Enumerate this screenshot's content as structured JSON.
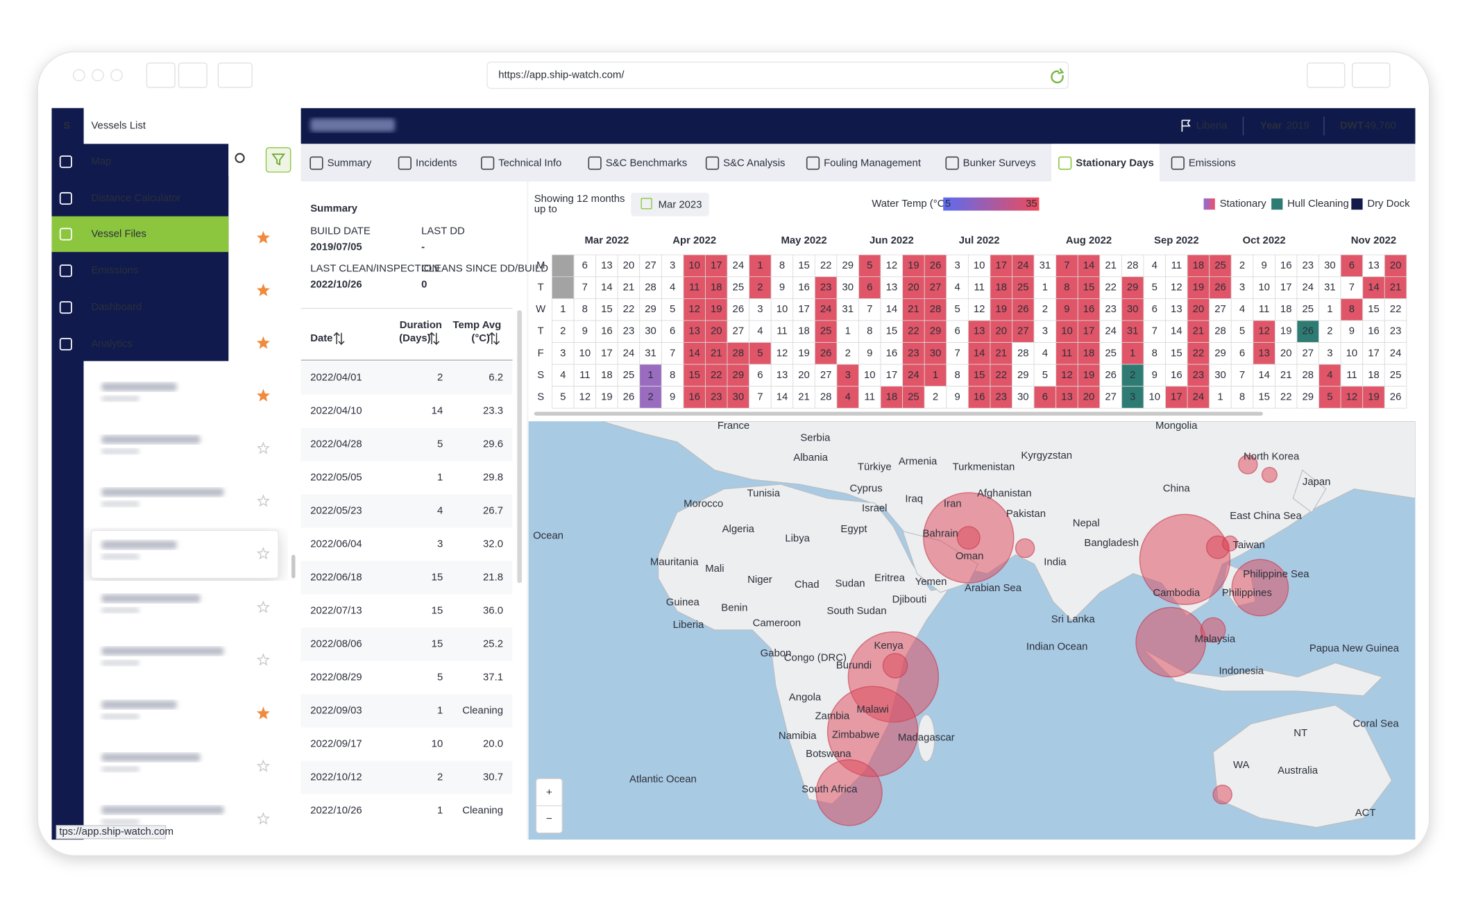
{
  "browser": {
    "url": "https://app.ship-watch.com/",
    "status_url": "tps://app.ship-watch.com"
  },
  "sidebar": {
    "logo": "S",
    "title": "Vessels List",
    "menu": [
      "Map",
      "Distance Calculator",
      "Vessel Files",
      "Emissions",
      "Dashboard",
      "Analytics"
    ],
    "active_index": 2
  },
  "vessel": {
    "flag": "Liberia",
    "year_label": "Year",
    "year": "2019",
    "dwt_label": "DWT",
    "dwt": "49,760"
  },
  "tabs": {
    "items": [
      "Summary",
      "Incidents",
      "Technical Info",
      "S&C Benchmarks",
      "S&C Analysis",
      "Fouling Management",
      "Bunker Surveys",
      "Stationary Days",
      "Emissions"
    ],
    "active_index": 7
  },
  "summary": {
    "title": "Summary",
    "fields": [
      {
        "label": "BUILD DATE",
        "value": "2019/07/05"
      },
      {
        "label": "LAST DD",
        "value": "-"
      },
      {
        "label": "LAST CLEAN/INSPECTION",
        "value": "2022/10/26"
      },
      {
        "label": "CLEANS SINCE DD/BUILD",
        "value": "0"
      }
    ]
  },
  "table": {
    "headers": [
      [
        "Date"
      ],
      [
        "Duration",
        "(Days)"
      ],
      [
        "Temp Avg",
        "(°C)"
      ]
    ],
    "rows": [
      [
        "2022/04/01",
        2,
        "6.2"
      ],
      [
        "2022/04/10",
        14,
        "23.3"
      ],
      [
        "2022/04/28",
        5,
        "29.6"
      ],
      [
        "2022/05/05",
        1,
        "29.8"
      ],
      [
        "2022/05/23",
        4,
        "26.7"
      ],
      [
        "2022/06/04",
        3,
        "32.0"
      ],
      [
        "2022/06/18",
        15,
        "21.8"
      ],
      [
        "2022/07/13",
        15,
        "36.0"
      ],
      [
        "2022/08/06",
        15,
        "25.2"
      ],
      [
        "2022/08/29",
        5,
        "37.1"
      ],
      [
        "2022/09/03",
        1,
        "Cleaning"
      ],
      [
        "2022/09/17",
        10,
        "20.0"
      ],
      [
        "2022/10/12",
        2,
        "30.7"
      ],
      [
        "2022/10/26",
        1,
        "Cleaning"
      ]
    ]
  },
  "calendar": {
    "showing": [
      "Showing 12 months",
      "up to"
    ],
    "up_to": "Mar 2023",
    "temp_label": "Water Temp (°C)",
    "temp_min": 5,
    "temp_max": 35,
    "legend": [
      {
        "name": "Stationary",
        "color": "#d05a8a"
      },
      {
        "name": "Hull Cleaning",
        "color": "#2e7b74"
      },
      {
        "name": "Dry Dock",
        "color": "#131a4a"
      }
    ],
    "months": [
      "Mar 2022",
      "Apr 2022",
      "May 2022",
      "Jun 2022",
      "Jul 2022",
      "Aug 2022",
      "Sep 2022",
      "Oct 2022",
      "Nov 2022"
    ],
    "weekdays": [
      "M",
      "T",
      "W",
      "T",
      "F",
      "S",
      "S"
    ],
    "palette": {
      ".": "#ffffff",
      "r": "#e05567",
      "p": "#9a6cc0",
      "t": "#2e7b74",
      "g": "#a3a3a3"
    },
    "weeks": [
      {
        "days": [
          null,
          null,
          1,
          2,
          3,
          4,
          5
        ],
        "pattern": "gg....."
      },
      {
        "days": [
          6,
          7,
          8,
          9,
          10,
          11,
          12
        ],
        "pattern": "......."
      },
      {
        "days": [
          13,
          14,
          15,
          16,
          17,
          18,
          19
        ],
        "pattern": "......."
      },
      {
        "days": [
          20,
          21,
          22,
          23,
          24,
          25,
          26
        ],
        "pattern": "......."
      },
      {
        "days": [
          27,
          28,
          29,
          30,
          31,
          1,
          2
        ],
        "pattern": ".....pp"
      },
      {
        "days": [
          3,
          4,
          5,
          6,
          7,
          8,
          9
        ],
        "pattern": "......."
      },
      {
        "days": [
          10,
          11,
          12,
          13,
          14,
          15,
          16
        ],
        "pattern": "rrrrrrr"
      },
      {
        "days": [
          17,
          18,
          19,
          20,
          21,
          22,
          23
        ],
        "pattern": "rrrrrrr"
      },
      {
        "days": [
          24,
          25,
          26,
          27,
          28,
          29,
          30
        ],
        "pattern": "....rrr"
      },
      {
        "days": [
          1,
          2,
          3,
          4,
          5,
          6,
          7
        ],
        "pattern": "rr..r.."
      },
      {
        "days": [
          8,
          9,
          10,
          11,
          12,
          13,
          14
        ],
        "pattern": "......."
      },
      {
        "days": [
          15,
          16,
          17,
          18,
          19,
          20,
          21
        ],
        "pattern": "......."
      },
      {
        "days": [
          22,
          23,
          24,
          25,
          26,
          27,
          28
        ],
        "pattern": ".rrrr.."
      },
      {
        "days": [
          29,
          30,
          31,
          1,
          2,
          3,
          4
        ],
        "pattern": ".....rr"
      },
      {
        "days": [
          5,
          6,
          7,
          8,
          9,
          10,
          11
        ],
        "pattern": "rr....."
      },
      {
        "days": [
          12,
          13,
          14,
          15,
          16,
          17,
          18
        ],
        "pattern": "......r"
      },
      {
        "days": [
          19,
          20,
          21,
          22,
          23,
          24,
          25
        ],
        "pattern": "rrrrrrr"
      },
      {
        "days": [
          26,
          27,
          28,
          29,
          30,
          1,
          2
        ],
        "pattern": "rrrrrr."
      },
      {
        "days": [
          3,
          4,
          5,
          6,
          7,
          8,
          9
        ],
        "pattern": "......."
      },
      {
        "days": [
          10,
          11,
          12,
          13,
          14,
          15,
          16
        ],
        "pattern": "...rrrr"
      },
      {
        "days": [
          17,
          18,
          19,
          20,
          21,
          22,
          23
        ],
        "pattern": "rrrrrrr"
      },
      {
        "days": [
          24,
          25,
          26,
          27,
          28,
          29,
          30
        ],
        "pattern": "rrrr..."
      },
      {
        "days": [
          31,
          1,
          2,
          3,
          4,
          5,
          6
        ],
        "pattern": "......r"
      },
      {
        "days": [
          7,
          8,
          9,
          10,
          11,
          12,
          13
        ],
        "pattern": "rrrrrrr"
      },
      {
        "days": [
          14,
          15,
          16,
          17,
          18,
          19,
          20
        ],
        "pattern": "rrrrrrr"
      },
      {
        "days": [
          21,
          22,
          23,
          24,
          25,
          26,
          27
        ],
        "pattern": "......."
      },
      {
        "days": [
          28,
          29,
          30,
          31,
          1,
          2,
          3
        ],
        "pattern": ".rrrrtt"
      },
      {
        "days": [
          4,
          5,
          6,
          7,
          8,
          9,
          10
        ],
        "pattern": "......."
      },
      {
        "days": [
          11,
          12,
          13,
          14,
          15,
          16,
          17
        ],
        "pattern": "......r"
      },
      {
        "days": [
          18,
          19,
          20,
          21,
          22,
          23,
          24
        ],
        "pattern": "rrrrrrr"
      },
      {
        "days": [
          25,
          26,
          27,
          28,
          29,
          30,
          1
        ],
        "pattern": "rr....."
      },
      {
        "days": [
          2,
          3,
          4,
          5,
          6,
          7,
          8
        ],
        "pattern": "......."
      },
      {
        "days": [
          9,
          10,
          11,
          12,
          13,
          14,
          15
        ],
        "pattern": "...rr.."
      },
      {
        "days": [
          16,
          17,
          18,
          19,
          20,
          21,
          22
        ],
        "pattern": "......."
      },
      {
        "days": [
          23,
          24,
          25,
          26,
          27,
          28,
          29
        ],
        "pattern": "...t..."
      },
      {
        "days": [
          30,
          31,
          1,
          2,
          3,
          4,
          5
        ],
        "pattern": ".....rr"
      },
      {
        "days": [
          6,
          7,
          8,
          9,
          10,
          11,
          12
        ],
        "pattern": "r.r...r"
      },
      {
        "days": [
          13,
          14,
          15,
          16,
          17,
          18,
          19
        ],
        "pattern": ".r....r"
      },
      {
        "days": [
          20,
          21,
          22,
          23,
          24,
          25,
          26
        ],
        "pattern": "rr....."
      }
    ]
  },
  "map": {
    "zoom": [
      "+",
      "−"
    ],
    "labels": [
      "France",
      "Serbia",
      "Albania",
      "Türkiye",
      "Armenia",
      "Turkmenistan",
      "Kyrgyzstan",
      "Mongolia",
      "North Korea",
      "Japan",
      "China",
      "Tunisia",
      "Cyprus",
      "Afghanistan",
      "Morocco",
      "Israel",
      "Iraq",
      "Iran",
      "Pakistan",
      "East China Sea",
      "Ocean",
      "Algeria",
      "Libya",
      "Egypt",
      "Nepal",
      "Bangladesh",
      "Taiwan",
      "Bahrain",
      "Oman",
      "Mauritania",
      "Mali",
      "India",
      "Niger",
      "Chad",
      "Sudan",
      "Eritrea",
      "Yemen",
      "Djibouti",
      "Philippine Sea",
      "Arabian Sea",
      "Cambodia",
      "Guinea",
      "Benin",
      "South Sudan",
      "Philippines",
      "Sri Lanka",
      "Liberia",
      "Cameroon",
      "Malaysia",
      "Kenya",
      "Indian Ocean",
      "Gabon",
      "Congo (DRC)",
      "Burundi",
      "Indonesia",
      "Papua New Guinea",
      "Angola",
      "Malawi",
      "Zambia",
      "Coral Sea",
      "Zimbabwe",
      "NT",
      "Namibia",
      "Madagascar",
      "Botswana",
      "WA",
      "Australia",
      "Atlantic Ocean",
      "South Africa",
      "ACT"
    ]
  }
}
